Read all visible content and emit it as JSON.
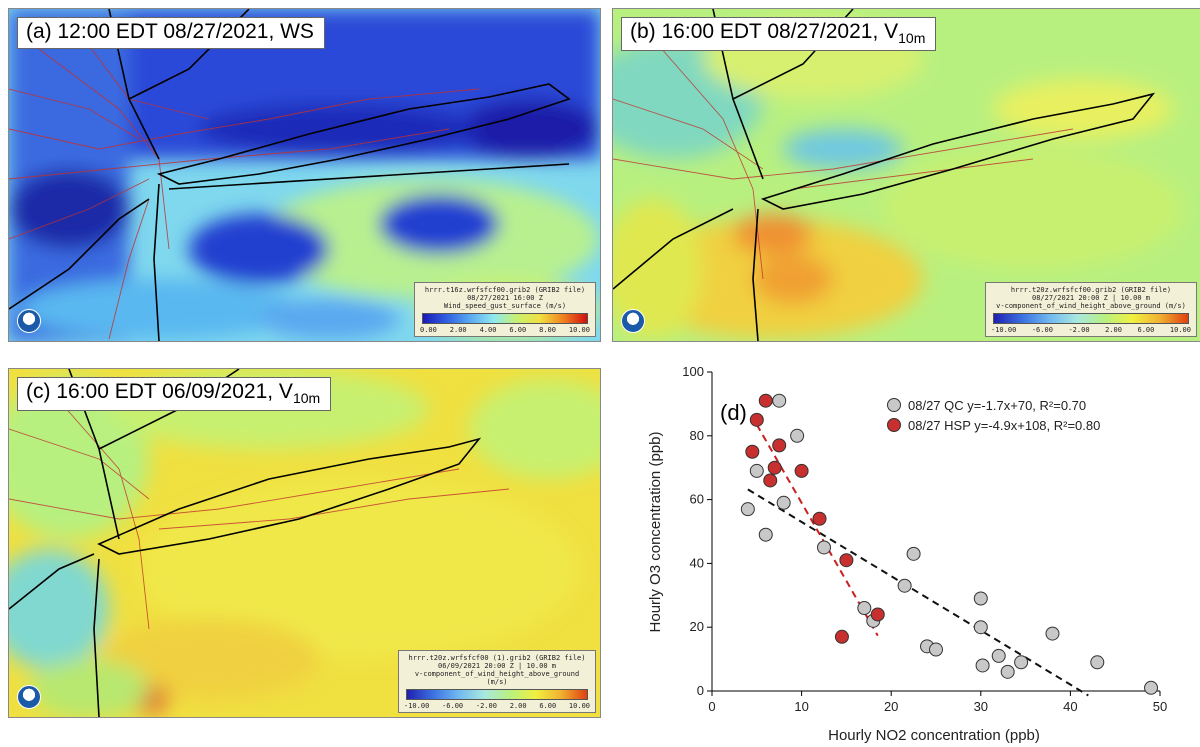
{
  "panels": [
    {
      "title_main": "(a) 12:00 EDT 08/27/2021, WS",
      "title_sub": "",
      "legend": [
        "hrrr.t16z.wrfsfcf00.grib2 (GRIB2 file)",
        "08/27/2021 16:00 Z",
        "Wind_speed_gust_surface (m/s)"
      ],
      "ticks": [
        "0.00",
        "2.00",
        "4.00",
        "6.00",
        "8.00",
        "10.00"
      ]
    },
    {
      "title_main": "(b) 16:00 EDT 08/27/2021, V",
      "title_sub": "10m",
      "legend": [
        "hrrr.t20z.wrfsfcf00.grib2 (GRIB2 file)",
        "08/27/2021 20:00 Z | 10.00 m",
        "v-component_of_wind_height_above_ground (m/s)"
      ],
      "ticks": [
        "-10.00",
        "-6.00",
        "-2.00",
        "2.00",
        "6.00",
        "10.00"
      ]
    },
    {
      "title_main": "(c) 16:00 EDT 06/09/2021, V",
      "title_sub": "10m",
      "legend": [
        "hrrr.t20z.wrfsfcf00 (1).grib2 (GRIB2 file)",
        "06/09/2021 20:00 Z | 10.00 m",
        "v-component_of_wind_height_above_ground (m/s)"
      ],
      "ticks": [
        "-10.00",
        "-6.00",
        "-2.00",
        "2.00",
        "6.00",
        "10.00"
      ]
    }
  ],
  "colors": {
    "ws_scale": [
      "#1a1ab8",
      "#2f5fe0",
      "#5aa8f0",
      "#8ee8f0",
      "#c8f070",
      "#f0e040",
      "#f08020",
      "#d01010"
    ],
    "v_scale": [
      "#2020b0",
      "#3a70e0",
      "#70b8f0",
      "#a8e8e0",
      "#b8f080",
      "#f0f040",
      "#f0b030",
      "#e04010"
    ],
    "qc": "#c8c8c8",
    "hsp": "#c83030"
  },
  "chart_data": {
    "type": "scatter",
    "panel_label": "(d)",
    "xlabel": "Hourly NO2 concentration (ppb)",
    "ylabel": "Hourly O3 concentration (ppb)",
    "xlim": [
      0,
      50
    ],
    "ylim": [
      0,
      100
    ],
    "xticks": [
      0,
      10,
      20,
      30,
      40,
      50
    ],
    "yticks": [
      0,
      20,
      40,
      60,
      80,
      100
    ],
    "legend_position": "top-right",
    "series": [
      {
        "name": "08/27 QC y=-1.7x+70, R²=0.70",
        "color": "#c8c8c8",
        "x": [
          4,
          5,
          6,
          7.5,
          8,
          9.5,
          12.5,
          17,
          18,
          21.5,
          22.5,
          24,
          25,
          30,
          30,
          30.2,
          32,
          33,
          34.5,
          38,
          43,
          49
        ],
        "y": [
          57,
          69,
          49,
          91,
          59,
          80,
          45,
          26,
          22,
          33,
          43,
          14,
          13,
          29,
          20,
          8,
          11,
          6,
          9,
          18,
          9,
          1
        ],
        "fit": {
          "slope": -1.7,
          "intercept": 70,
          "x_range": [
            4,
            42
          ]
        }
      },
      {
        "name": "08/27 HSP y=-4.9x+108, R²=0.80",
        "color": "#c83030",
        "x": [
          4.5,
          5,
          6,
          6.5,
          7,
          7.5,
          10,
          12,
          15,
          14.5,
          18.5
        ],
        "y": [
          75,
          85,
          91,
          66,
          70,
          77,
          69,
          54,
          41,
          17,
          24
        ],
        "fit": {
          "slope": -4.9,
          "intercept": 108,
          "x_range": [
            5,
            18.5
          ]
        }
      }
    ]
  }
}
